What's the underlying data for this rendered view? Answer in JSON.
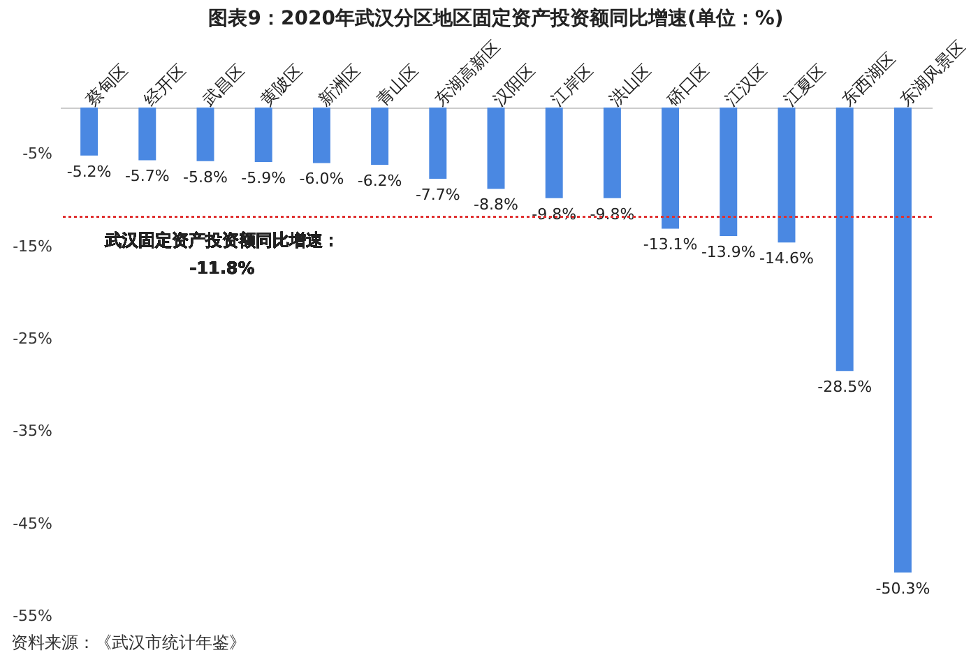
{
  "chart_data": {
    "type": "bar",
    "title": "图表9：2020年武汉分区地区固定资产投资额同比增速(单位：%)",
    "categories": [
      "蔡甸区",
      "经开区",
      "武昌区",
      "黄陂区",
      "新洲区",
      "青山区",
      "东湖高新区",
      "汉阳区",
      "江岸区",
      "洪山区",
      "硚口区",
      "江汉区",
      "江夏区",
      "东西湖区",
      "东湖风景区"
    ],
    "values": [
      -5.2,
      -5.7,
      -5.8,
      -5.9,
      -6.0,
      -6.2,
      -7.7,
      -8.8,
      -9.8,
      -9.8,
      -13.1,
      -13.9,
      -14.6,
      -28.5,
      -50.3
    ],
    "value_labels": [
      "-5.2%",
      "-5.7%",
      "-5.8%",
      "-5.9%",
      "-6.0%",
      "-6.2%",
      "-7.7%",
      "-8.8%",
      "-9.8%",
      "-9.8%",
      "-13.1%",
      "-13.9%",
      "-14.6%",
      "-28.5%",
      "-50.3%"
    ],
    "color": "#4a88e2",
    "ylim": [
      -55,
      0
    ],
    "yticks": [
      {
        "value": -5,
        "label": "-5%"
      },
      {
        "value": -15,
        "label": "-15%"
      },
      {
        "value": -25,
        "label": "-25%"
      },
      {
        "value": -35,
        "label": "-35%"
      },
      {
        "value": -45,
        "label": "-45%"
      },
      {
        "value": -55,
        "label": "-55%"
      }
    ],
    "ref_lines": [
      {
        "axis": "y",
        "value": -11.8,
        "label": "武汉固定资产投资额同比增速：\n-11.8%",
        "color": "#e03030",
        "line_style": "dotted"
      }
    ],
    "annotations": [
      "资料来源：《武汉市统计年鉴》"
    ],
    "grid": false
  }
}
